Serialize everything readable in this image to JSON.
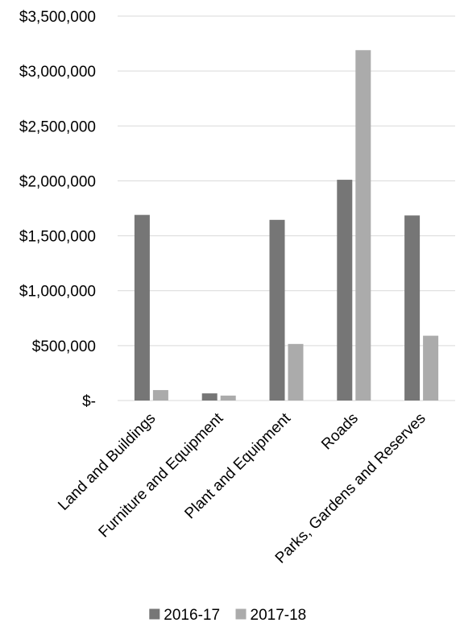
{
  "chart_data": {
    "type": "bar",
    "title": "",
    "xlabel": "",
    "ylabel": "",
    "categories": [
      "Land and Buildings",
      "Furniture and Equipment",
      "Plant and Equipment",
      "Roads",
      "Parks, Gardens and Reserves"
    ],
    "series": [
      {
        "name": "2016-17",
        "color": "#767676",
        "values": [
          1690000,
          65000,
          1645000,
          2010000,
          1685000
        ]
      },
      {
        "name": "2017-18",
        "color": "#ababab",
        "values": [
          95000,
          45000,
          515000,
          3190000,
          590000
        ]
      }
    ],
    "ylim": [
      0,
      3500000
    ],
    "y_ticks": [
      0,
      500000,
      1000000,
      1500000,
      2000000,
      2500000,
      3000000,
      3500000
    ],
    "y_tick_labels": [
      "$-",
      "$500,000",
      "$1,000,000",
      "$1,500,000",
      "$2,000,000",
      "$2,500,000",
      "$3,000,000",
      "$3,500,000"
    ],
    "grid": true,
    "legend_position": "bottom",
    "gridline_color": "#d9d9d9"
  }
}
